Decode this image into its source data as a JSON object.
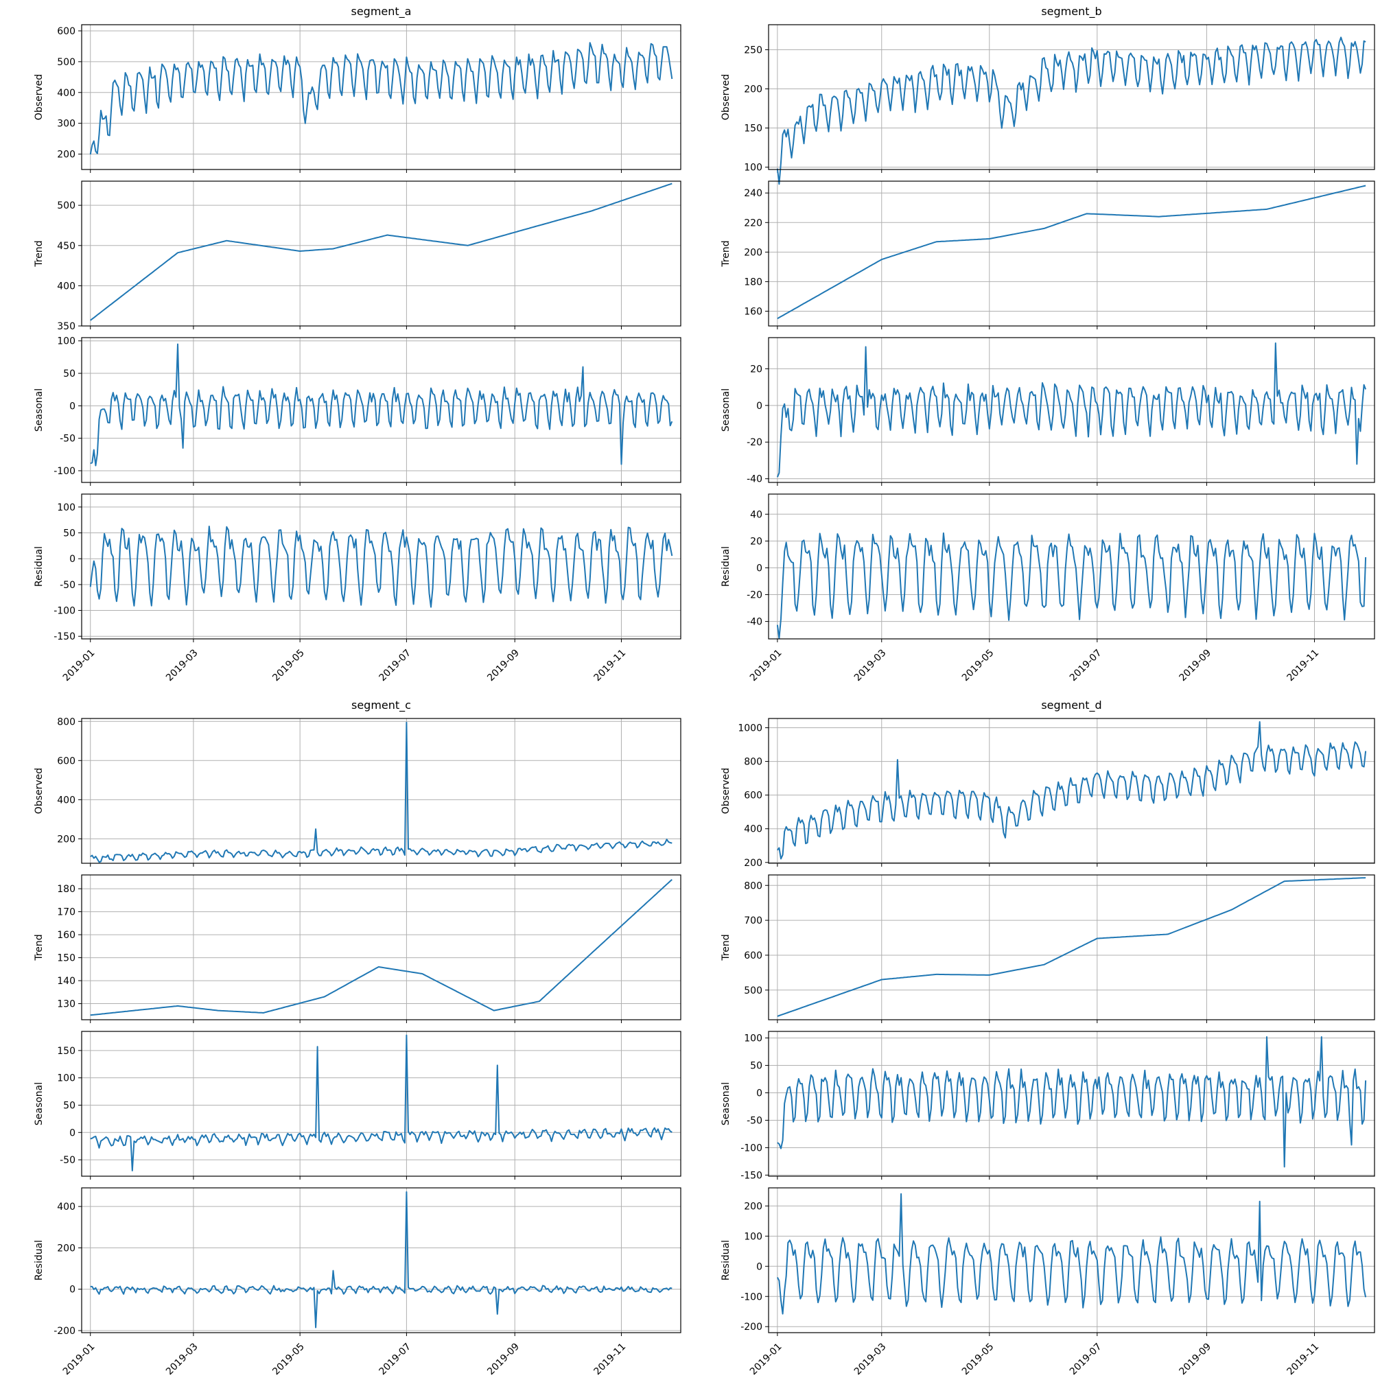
{
  "chart_data": [
    {
      "type": "line",
      "title": "segment_a",
      "x_range": [
        "2019-01-01",
        "2019-11-30"
      ],
      "xticks": [
        "2019-01",
        "2019-03",
        "2019-05",
        "2019-07",
        "2019-09",
        "2019-11"
      ],
      "grid": true,
      "panels": [
        {
          "ylabel": "Observed",
          "ylim": [
            150,
            620
          ],
          "yticks": [
            200,
            300,
            400,
            500,
            600
          ],
          "knots": {
            "x": [
              "2019-01-01",
              "2019-01-03",
              "2019-01-06",
              "2019-01-10",
              "2019-01-15",
              "2019-02-01",
              "2019-03-01",
              "2019-04-01",
              "2019-05-01",
              "2019-05-05",
              "2019-05-15",
              "2019-06-01",
              "2019-07-01",
              "2019-08-01",
              "2019-09-01",
              "2019-10-01",
              "2019-10-15",
              "2019-11-01",
              "2019-11-30"
            ],
            "y": [
              170,
              240,
              280,
              300,
              400,
              420,
              460,
              460,
              470,
              340,
              460,
              470,
              450,
              450,
              460,
              480,
              500,
              480,
              520
            ]
          },
          "seasonal_amp": 70,
          "period_days": 7,
          "noise": 15
        },
        {
          "ylabel": "Trend",
          "ylim": [
            350,
            530
          ],
          "yticks": [
            350,
            400,
            450,
            500
          ],
          "knots": {
            "x": [
              "2019-01-01",
              "2019-02-20",
              "2019-03-20",
              "2019-05-01",
              "2019-05-20",
              "2019-06-20",
              "2019-08-05",
              "2019-09-15",
              "2019-10-15",
              "2019-11-30"
            ],
            "y": [
              357,
              441,
              456,
              443,
              446,
              463,
              450,
              475,
              493,
              527
            ]
          },
          "seasonal_amp": 0,
          "period_days": 7,
          "noise": 0
        },
        {
          "ylabel": "Seasonal",
          "ylim": [
            -118,
            105
          ],
          "yticks": [
            -100,
            -50,
            0,
            50,
            100
          ],
          "knots": {
            "x": [
              "2019-01-01",
              "2019-01-05",
              "2019-01-12",
              "2019-11-30"
            ],
            "y": [
              -110,
              -40,
              0,
              0
            ]
          },
          "seasonal_amp": 30,
          "period_days": 7,
          "noise": 8,
          "spikes": [
            [
              "2019-02-20",
              95
            ],
            [
              "2019-02-23",
              -65
            ],
            [
              "2019-10-10",
              60
            ],
            [
              "2019-11-01",
              -90
            ]
          ]
        },
        {
          "ylabel": "Residual",
          "ylim": [
            -155,
            125
          ],
          "yticks": [
            -150,
            -100,
            -50,
            0,
            50,
            100
          ],
          "knots": {
            "x": [
              "2019-01-01",
              "2019-01-03",
              "2019-01-10",
              "2019-11-30"
            ],
            "y": [
              -80,
              -20,
              0,
              0
            ]
          },
          "seasonal_amp": 70,
          "period_days": 10,
          "noise": 15
        }
      ]
    },
    {
      "type": "line",
      "title": "segment_b",
      "x_range": [
        "2019-01-01",
        "2019-11-30"
      ],
      "xticks": [
        "2019-01",
        "2019-03",
        "2019-05",
        "2019-07",
        "2019-09",
        "2019-11"
      ],
      "grid": true,
      "panels": [
        {
          "ylabel": "Observed",
          "ylim": [
            97,
            282
          ],
          "yticks": [
            100,
            150,
            200,
            250
          ],
          "knots": {
            "x": [
              "2019-01-01",
              "2019-01-04",
              "2019-01-10",
              "2019-01-20",
              "2019-02-10",
              "2019-03-01",
              "2019-04-01",
              "2019-05-01",
              "2019-05-10",
              "2019-06-01",
              "2019-07-01",
              "2019-08-01",
              "2019-09-01",
              "2019-10-01",
              "2019-11-01",
              "2019-11-30"
            ],
            "y": [
              103,
              130,
              140,
              170,
              180,
              195,
              210,
              215,
              170,
              220,
              235,
              225,
              230,
              240,
              245,
              245
            ]
          },
          "seasonal_amp": 25,
          "period_days": 7,
          "noise": 6
        },
        {
          "ylabel": "Trend",
          "ylim": [
            150,
            248
          ],
          "yticks": [
            160,
            180,
            200,
            220,
            240
          ],
          "knots": {
            "x": [
              "2019-01-01",
              "2019-03-01",
              "2019-04-01",
              "2019-05-01",
              "2019-06-01",
              "2019-06-25",
              "2019-08-05",
              "2019-10-05",
              "2019-11-30"
            ],
            "y": [
              155,
              195,
              207,
              209,
              216,
              226,
              224,
              229,
              245
            ]
          },
          "seasonal_amp": 0,
          "period_days": 7,
          "noise": 0
        },
        {
          "ylabel": "Seasonal",
          "ylim": [
            -42,
            37
          ],
          "yticks": [
            -40,
            -20,
            0,
            20
          ],
          "knots": {
            "x": [
              "2019-01-01",
              "2019-01-04",
              "2019-01-12",
              "2019-11-30"
            ],
            "y": [
              -33,
              -10,
              0,
              0
            ]
          },
          "seasonal_amp": 12,
          "period_days": 7,
          "noise": 4,
          "spikes": [
            [
              "2019-02-20",
              32
            ],
            [
              "2019-10-10",
              34
            ],
            [
              "2019-11-25",
              -32
            ]
          ]
        },
        {
          "ylabel": "Residual",
          "ylim": [
            -53,
            55
          ],
          "yticks": [
            -40,
            -20,
            0,
            20,
            40
          ],
          "knots": {
            "x": [
              "2019-01-01",
              "2019-01-10",
              "2019-11-30"
            ],
            "y": [
              -15,
              0,
              0
            ]
          },
          "seasonal_amp": 30,
          "period_days": 10,
          "noise": 6
        }
      ]
    },
    {
      "type": "line",
      "title": "segment_c",
      "x_range": [
        "2019-01-01",
        "2019-11-30"
      ],
      "xticks": [
        "2019-01",
        "2019-03",
        "2019-05",
        "2019-07",
        "2019-09",
        "2019-11"
      ],
      "grid": true,
      "panels": [
        {
          "ylabel": "Observed",
          "ylim": [
            75,
            815
          ],
          "yticks": [
            200,
            400,
            600,
            800
          ],
          "knots": {
            "x": [
              "2019-01-01",
              "2019-03-01",
              "2019-05-01",
              "2019-06-01",
              "2019-07-01",
              "2019-08-20",
              "2019-10-01",
              "2019-11-30"
            ],
            "y": [
              100,
              125,
              125,
              140,
              140,
              130,
              160,
              180
            ]
          },
          "seasonal_amp": 15,
          "period_days": 7,
          "noise": 8,
          "spikes": [
            [
              "2019-05-10",
              250
            ],
            [
              "2019-07-01",
              795
            ]
          ]
        },
        {
          "ylabel": "Trend",
          "ylim": [
            123,
            186
          ],
          "yticks": [
            130,
            140,
            150,
            160,
            170,
            180
          ],
          "knots": {
            "x": [
              "2019-01-01",
              "2019-02-20",
              "2019-03-15",
              "2019-04-10",
              "2019-05-15",
              "2019-06-15",
              "2019-07-10",
              "2019-08-20",
              "2019-09-15",
              "2019-10-15",
              "2019-11-30"
            ],
            "y": [
              125,
              129,
              127,
              126,
              133,
              146,
              143,
              127,
              131,
              152,
              184
            ]
          },
          "seasonal_amp": 0,
          "period_days": 7,
          "noise": 0
        },
        {
          "ylabel": "Seasonal",
          "ylim": [
            -80,
            185
          ],
          "yticks": [
            -50,
            0,
            50,
            100,
            150
          ],
          "knots": {
            "x": [
              "2019-01-01",
              "2019-11-30"
            ],
            "y": [
              -15,
              0
            ]
          },
          "seasonal_amp": 8,
          "period_days": 7,
          "noise": 5,
          "spikes": [
            [
              "2019-01-25",
              -70
            ],
            [
              "2019-05-11",
              157
            ],
            [
              "2019-07-01",
              178
            ],
            [
              "2019-08-22",
              123
            ]
          ]
        },
        {
          "ylabel": "Residual",
          "ylim": [
            -210,
            490
          ],
          "yticks": [
            -200,
            0,
            200,
            400
          ],
          "knots": {
            "x": [
              "2019-01-01",
              "2019-11-30"
            ],
            "y": [
              0,
              0
            ]
          },
          "seasonal_amp": 12,
          "period_days": 7,
          "noise": 10,
          "spikes": [
            [
              "2019-05-10",
              -185
            ],
            [
              "2019-05-20",
              90
            ],
            [
              "2019-07-01",
              470
            ],
            [
              "2019-08-22",
              -120
            ]
          ]
        }
      ]
    },
    {
      "type": "line",
      "title": "segment_d",
      "x_range": [
        "2019-01-01",
        "2019-11-30"
      ],
      "xticks": [
        "2019-01",
        "2019-03",
        "2019-05",
        "2019-07",
        "2019-09",
        "2019-11"
      ],
      "grid": true,
      "panels": [
        {
          "ylabel": "Observed",
          "ylim": [
            195,
            1055
          ],
          "yticks": [
            200,
            400,
            600,
            800,
            1000
          ],
          "knots": {
            "x": [
              "2019-01-01",
              "2019-01-04",
              "2019-02-01",
              "2019-03-01",
              "2019-04-01",
              "2019-05-01",
              "2019-05-10",
              "2019-06-01",
              "2019-07-01",
              "2019-08-01",
              "2019-09-01",
              "2019-10-01",
              "2019-11-01",
              "2019-11-30"
            ],
            "y": [
              240,
              350,
              470,
              540,
              560,
              560,
              450,
              580,
              680,
              650,
              700,
              830,
              820,
              850
            ]
          },
          "seasonal_amp": 90,
          "period_days": 7,
          "noise": 20,
          "spikes": [
            [
              "2019-03-10",
              810
            ],
            [
              "2019-10-01",
              1035
            ]
          ]
        },
        {
          "ylabel": "Trend",
          "ylim": [
            415,
            830
          ],
          "yticks": [
            500,
            600,
            700,
            800
          ],
          "knots": {
            "x": [
              "2019-01-01",
              "2019-03-01",
              "2019-04-01",
              "2019-05-01",
              "2019-06-01",
              "2019-07-01",
              "2019-08-10",
              "2019-09-15",
              "2019-10-15",
              "2019-11-30"
            ],
            "y": [
              425,
              530,
              545,
              543,
              573,
              648,
              660,
              730,
              812,
              822
            ]
          },
          "seasonal_amp": 0,
          "period_days": 7,
          "noise": 0
        },
        {
          "ylabel": "Seasonal",
          "ylim": [
            -152,
            112
          ],
          "yticks": [
            -150,
            -100,
            -50,
            0,
            50,
            100
          ],
          "knots": {
            "x": [
              "2019-01-01",
              "2019-01-05",
              "2019-01-12",
              "2019-11-30"
            ],
            "y": [
              -100,
              -30,
              0,
              0
            ]
          },
          "seasonal_amp": 45,
          "period_days": 7,
          "noise": 12,
          "spikes": [
            [
              "2019-10-05",
              102
            ],
            [
              "2019-10-15",
              -135
            ],
            [
              "2019-11-05",
              102
            ],
            [
              "2019-11-22",
              -95
            ]
          ]
        },
        {
          "ylabel": "Residual",
          "ylim": [
            -220,
            260
          ],
          "yticks": [
            -200,
            -100,
            0,
            100,
            200
          ],
          "knots": {
            "x": [
              "2019-01-01",
              "2019-01-05",
              "2019-11-30"
            ],
            "y": [
              -80,
              0,
              0
            ]
          },
          "seasonal_amp": 110,
          "period_days": 10,
          "noise": 20,
          "spikes": [
            [
              "2019-03-12",
              240
            ],
            [
              "2019-10-01",
              215
            ]
          ]
        }
      ]
    }
  ]
}
